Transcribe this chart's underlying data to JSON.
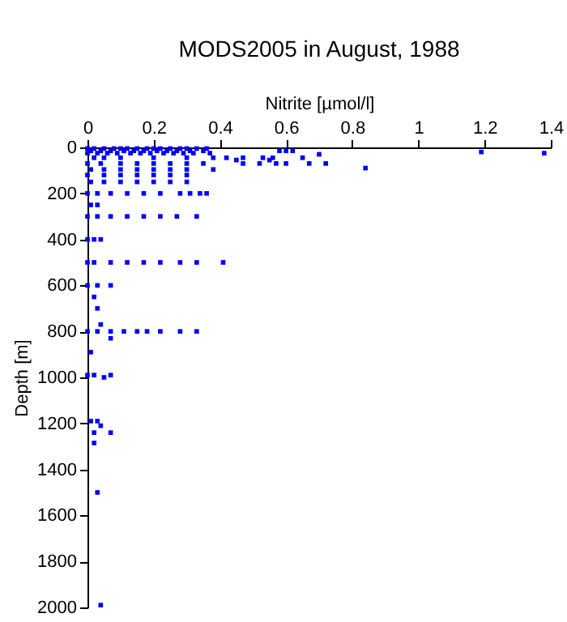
{
  "chart_data": {
    "type": "scatter",
    "title": "MODS2005 in August, 1988",
    "xlabel": "Nitrite [µmol/l]",
    "ylabel": "Depth [m]",
    "color": "#0000ff",
    "marker": "square",
    "xlim": [
      0,
      1.4
    ],
    "xticks": [
      0,
      0.2,
      0.4,
      0.6,
      0.8,
      1,
      1.2,
      1.4
    ],
    "ylim": [
      2000,
      0
    ],
    "yticks": [
      0,
      200,
      400,
      600,
      800,
      1000,
      1200,
      1400,
      1600,
      1800,
      2000
    ],
    "x": [
      0,
      0.02,
      0.05,
      0.08,
      0.1,
      0.12,
      0.15,
      0.18,
      0.2,
      0.22,
      0.25,
      0.28,
      0.3,
      0.33,
      0.36,
      0.01,
      0.04,
      0.07,
      0.11,
      0.14,
      0.17,
      0.21,
      0.24,
      0.27,
      0.31,
      0.35,
      0.58,
      0.6,
      0.62,
      0,
      0.03,
      0.06,
      0.09,
      0.13,
      0.16,
      0.19,
      0.23,
      0.26,
      0.29,
      0.32,
      0.37,
      0.7,
      1.19,
      1.38,
      0.02,
      0.05,
      0.1,
      0.2,
      0.3,
      0.38,
      0.42,
      0.47,
      0.53,
      0.56,
      0.65,
      0,
      0.04,
      0.1,
      0.15,
      0.2,
      0.25,
      0.3,
      0.35,
      0.47,
      0.52,
      0.57,
      0.6,
      0.67,
      0.72,
      0.84,
      0.55,
      0.45,
      0.01,
      0.05,
      0.1,
      0.15,
      0.2,
      0.25,
      0.3,
      0.38,
      0,
      0.05,
      0.1,
      0.15,
      0.2,
      0.25,
      0.3,
      0.01,
      0.05,
      0.1,
      0.15,
      0.2,
      0.25,
      0.3,
      0,
      0.03,
      0.07,
      0.12,
      0.17,
      0.22,
      0.28,
      0.31,
      0.34,
      0.36,
      0.01,
      0.03,
      0,
      0.03,
      0.07,
      0.12,
      0.17,
      0.22,
      0.27,
      0.33,
      0,
      0.02,
      0.04,
      0,
      0.02,
      0.07,
      0.12,
      0.17,
      0.22,
      0.28,
      0.33,
      0.41,
      0,
      0.03,
      0.07,
      0.02,
      0.03,
      0.04,
      0,
      0.03,
      0.07,
      0.11,
      0.15,
      0.18,
      0.22,
      0.28,
      0.33,
      0.07,
      0.01,
      0,
      0.02,
      0.05,
      0.07,
      0.01,
      0.03,
      0.04,
      0.02,
      0.07,
      0.02,
      0.03,
      0.04
    ],
    "values": [
      5,
      5,
      5,
      5,
      5,
      5,
      5,
      5,
      5,
      5,
      5,
      5,
      5,
      5,
      5,
      15,
      15,
      15,
      15,
      15,
      15,
      15,
      15,
      15,
      15,
      15,
      15,
      15,
      15,
      25,
      25,
      25,
      25,
      25,
      25,
      25,
      25,
      25,
      25,
      25,
      25,
      30,
      20,
      25,
      45,
      45,
      45,
      45,
      45,
      45,
      45,
      45,
      45,
      45,
      45,
      70,
      70,
      70,
      70,
      70,
      70,
      70,
      70,
      70,
      70,
      70,
      70,
      70,
      70,
      90,
      55,
      55,
      96,
      96,
      96,
      96,
      96,
      96,
      96,
      96,
      120,
      120,
      120,
      120,
      120,
      120,
      120,
      150,
      150,
      150,
      150,
      150,
      150,
      150,
      200,
      200,
      200,
      200,
      200,
      200,
      200,
      200,
      200,
      200,
      250,
      250,
      300,
      300,
      300,
      300,
      300,
      300,
      300,
      300,
      400,
      400,
      400,
      500,
      500,
      500,
      500,
      500,
      500,
      500,
      500,
      500,
      600,
      600,
      600,
      650,
      700,
      770,
      800,
      800,
      800,
      800,
      800,
      800,
      800,
      800,
      800,
      830,
      890,
      990,
      990,
      1000,
      990,
      1190,
      1190,
      1210,
      1240,
      1240,
      1285,
      1500,
      1990
    ]
  }
}
